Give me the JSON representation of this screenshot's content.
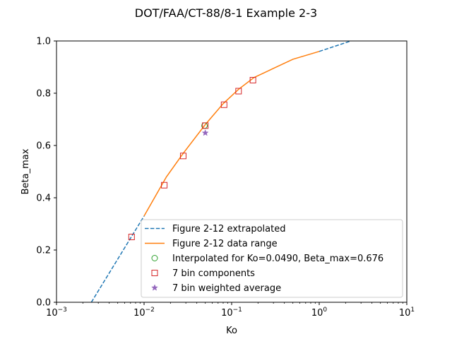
{
  "chart_data": {
    "type": "line",
    "title": "DOT/FAA/CT-88/8-1 Example 2-3",
    "xlabel": "Ko",
    "ylabel": "Beta_max",
    "xscale": "log",
    "xlim": [
      0.001,
      10
    ],
    "ylim": [
      0.0,
      1.0
    ],
    "x_ticks": [
      0.001,
      0.01,
      0.1,
      1,
      10
    ],
    "x_tick_labels": [
      {
        "base": "10",
        "exp": "−3"
      },
      {
        "base": "10",
        "exp": "−2"
      },
      {
        "base": "10",
        "exp": "−1"
      },
      {
        "base": "10",
        "exp": "0"
      },
      {
        "base": "10",
        "exp": "1"
      }
    ],
    "y_ticks": [
      0.0,
      0.2,
      0.4,
      0.6,
      0.8,
      1.0
    ],
    "y_tick_labels": [
      "0.0",
      "0.2",
      "0.4",
      "0.6",
      "0.8",
      "1.0"
    ],
    "grid": false,
    "legend_position": "lower-right",
    "series": [
      {
        "name": "Figure 2-12 extrapolated",
        "style": "dashed",
        "color": "#1f77b4",
        "x": [
          0.0025,
          0.01
        ],
        "y": [
          0.0,
          0.33
        ],
        "x2": [
          1.0,
          2.3
        ],
        "y2": [
          0.96,
          1.0
        ]
      },
      {
        "name": "Figure 2-12 data range",
        "style": "solid",
        "color": "#ff7f0e",
        "x": [
          0.01,
          0.018,
          0.028,
          0.05,
          0.08,
          0.12,
          0.18,
          0.3,
          0.5,
          1.0
        ],
        "y": [
          0.33,
          0.48,
          0.57,
          0.68,
          0.76,
          0.815,
          0.86,
          0.895,
          0.93,
          0.96
        ]
      },
      {
        "name": "Interpolated for Ko=0.0490, Beta_max=0.676",
        "style": "marker-circle",
        "color": "#2ca02c",
        "x": [
          0.049
        ],
        "y": [
          0.676
        ]
      },
      {
        "name": "7 bin components",
        "style": "marker-square",
        "color": "#d62728",
        "x": [
          0.0072,
          0.017,
          0.028,
          0.05,
          0.082,
          0.12,
          0.175
        ],
        "y": [
          0.25,
          0.448,
          0.56,
          0.676,
          0.756,
          0.808,
          0.85
        ]
      },
      {
        "name": "7 bin weighted average",
        "style": "marker-star",
        "color": "#9467bd",
        "x": [
          0.05
        ],
        "y": [
          0.648
        ]
      }
    ]
  }
}
